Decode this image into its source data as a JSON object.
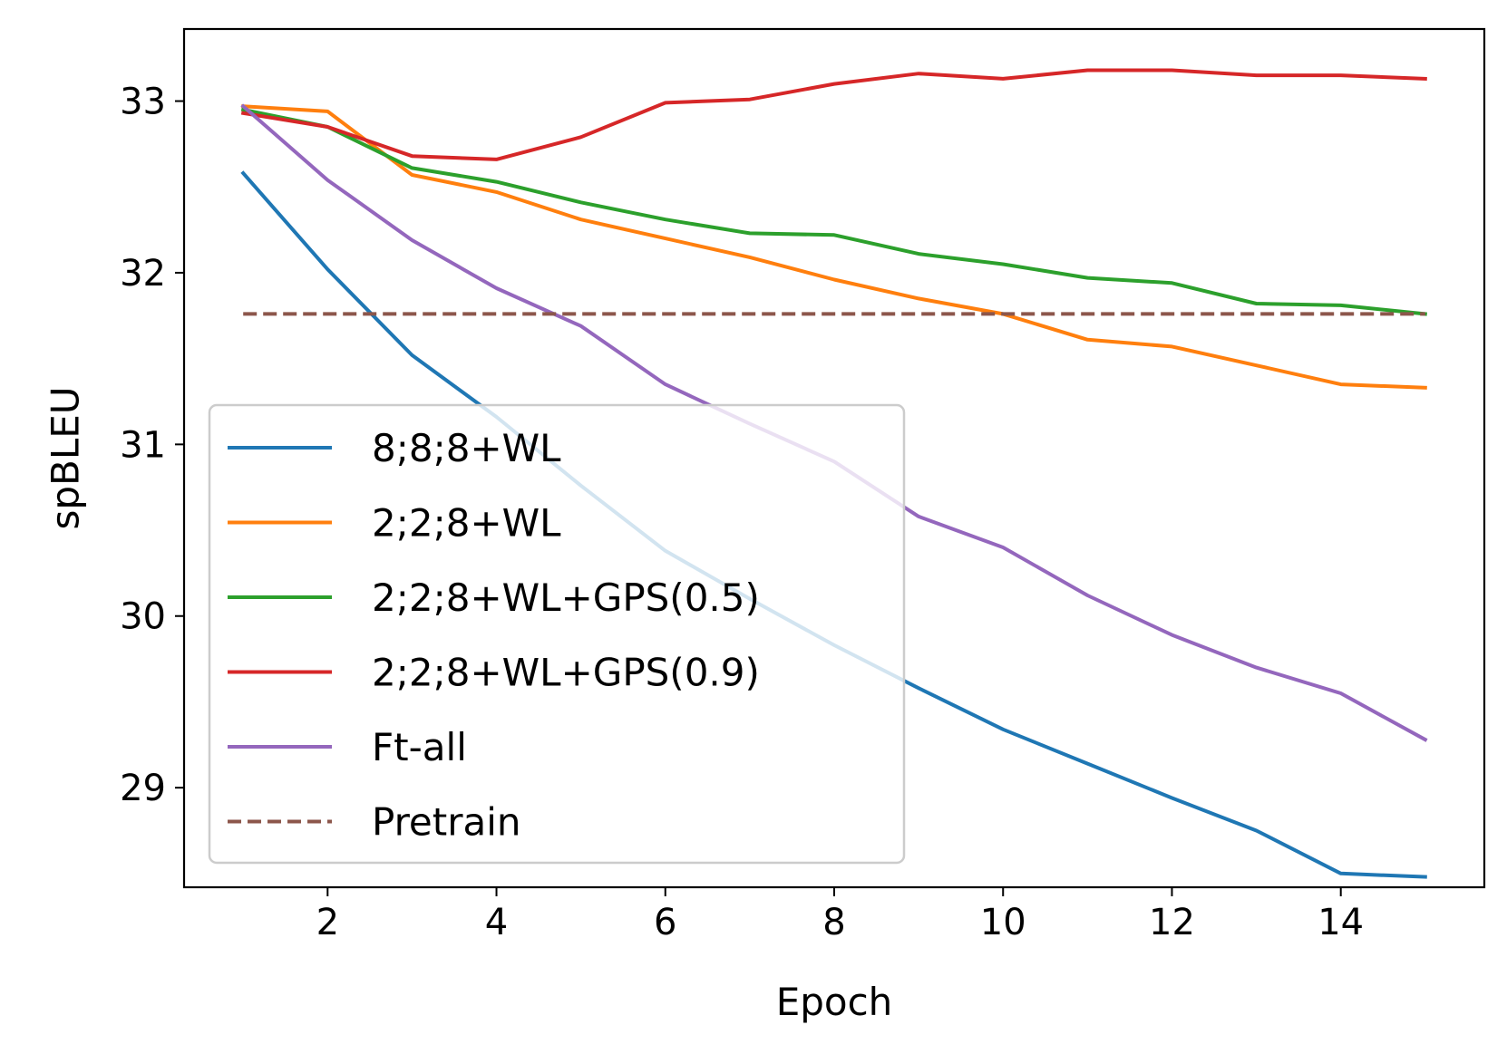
{
  "chart_data": {
    "type": "line",
    "title": "",
    "xlabel": "Epoch",
    "ylabel": "spBLEU",
    "xlim": [
      0.3,
      15.7
    ],
    "ylim": [
      28.42,
      33.42
    ],
    "xticks": [
      2,
      4,
      6,
      8,
      10,
      12,
      14
    ],
    "yticks": [
      29,
      30,
      31,
      32,
      33
    ],
    "grid": false,
    "legend_position": "lower-left",
    "x": [
      1,
      2,
      3,
      4,
      5,
      6,
      7,
      8,
      9,
      10,
      11,
      12,
      13,
      14,
      15
    ],
    "series": [
      {
        "name": "8;8;8+WL",
        "color": "#1f77b4",
        "style": "solid",
        "values": [
          32.58,
          32.02,
          31.52,
          31.16,
          30.76,
          30.38,
          30.1,
          29.83,
          29.58,
          29.34,
          29.14,
          28.94,
          28.75,
          28.5,
          28.48
        ]
      },
      {
        "name": "2;2;8+WL",
        "color": "#ff7f0e",
        "style": "solid",
        "values": [
          32.97,
          32.94,
          32.57,
          32.47,
          32.31,
          32.2,
          32.09,
          31.96,
          31.85,
          31.76,
          31.61,
          31.57,
          31.46,
          31.35,
          31.33
        ]
      },
      {
        "name": "2;2;8+WL+GPS(0.5)",
        "color": "#2ca02c",
        "style": "solid",
        "values": [
          32.95,
          32.85,
          32.61,
          32.53,
          32.41,
          32.31,
          32.23,
          32.22,
          32.11,
          32.05,
          31.97,
          31.94,
          31.82,
          31.81,
          31.76
        ]
      },
      {
        "name": "2;2;8+WL+GPS(0.9)",
        "color": "#d62728",
        "style": "solid",
        "values": [
          32.93,
          32.85,
          32.68,
          32.66,
          32.79,
          32.99,
          33.01,
          33.1,
          33.16,
          33.13,
          33.18,
          33.18,
          33.15,
          33.15,
          33.13
        ]
      },
      {
        "name": "Ft-all",
        "color": "#9467bd",
        "style": "solid",
        "values": [
          32.97,
          32.54,
          32.19,
          31.91,
          31.69,
          31.35,
          31.12,
          30.9,
          30.58,
          30.4,
          30.12,
          29.89,
          29.7,
          29.55,
          29.28
        ]
      },
      {
        "name": "Pretrain",
        "color": "#8c564b",
        "style": "dashed",
        "values": [
          31.76,
          31.76,
          31.76,
          31.76,
          31.76,
          31.76,
          31.76,
          31.76,
          31.76,
          31.76,
          31.76,
          31.76,
          31.76,
          31.76,
          31.76
        ]
      }
    ]
  }
}
